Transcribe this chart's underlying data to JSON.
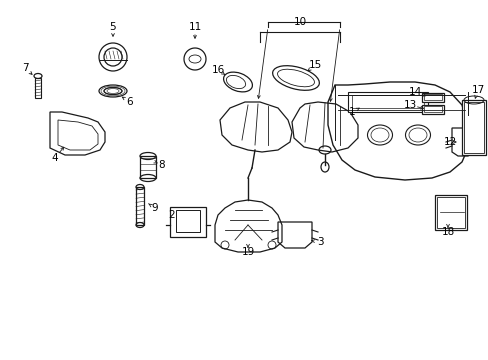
{
  "background_color": "#ffffff",
  "line_color": "#1a1a1a",
  "figsize": [
    4.89,
    3.6
  ],
  "dpi": 100
}
